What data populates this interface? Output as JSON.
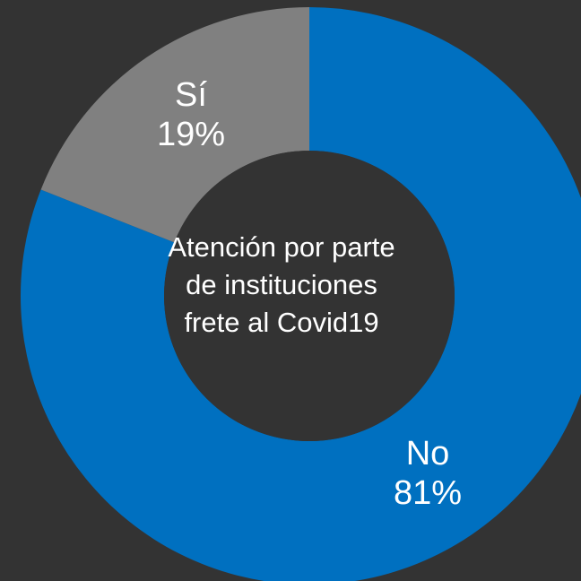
{
  "chart_data": {
    "type": "pie",
    "title": "Atención por parte\nde instituciones\nfrete al Covid19",
    "categories": [
      "No",
      "Sí"
    ],
    "values": [
      81,
      19
    ],
    "value_labels": [
      "81%",
      "19%"
    ],
    "colors": [
      "#0070C0",
      "#808080"
    ],
    "background": "#333333",
    "donut": true
  }
}
